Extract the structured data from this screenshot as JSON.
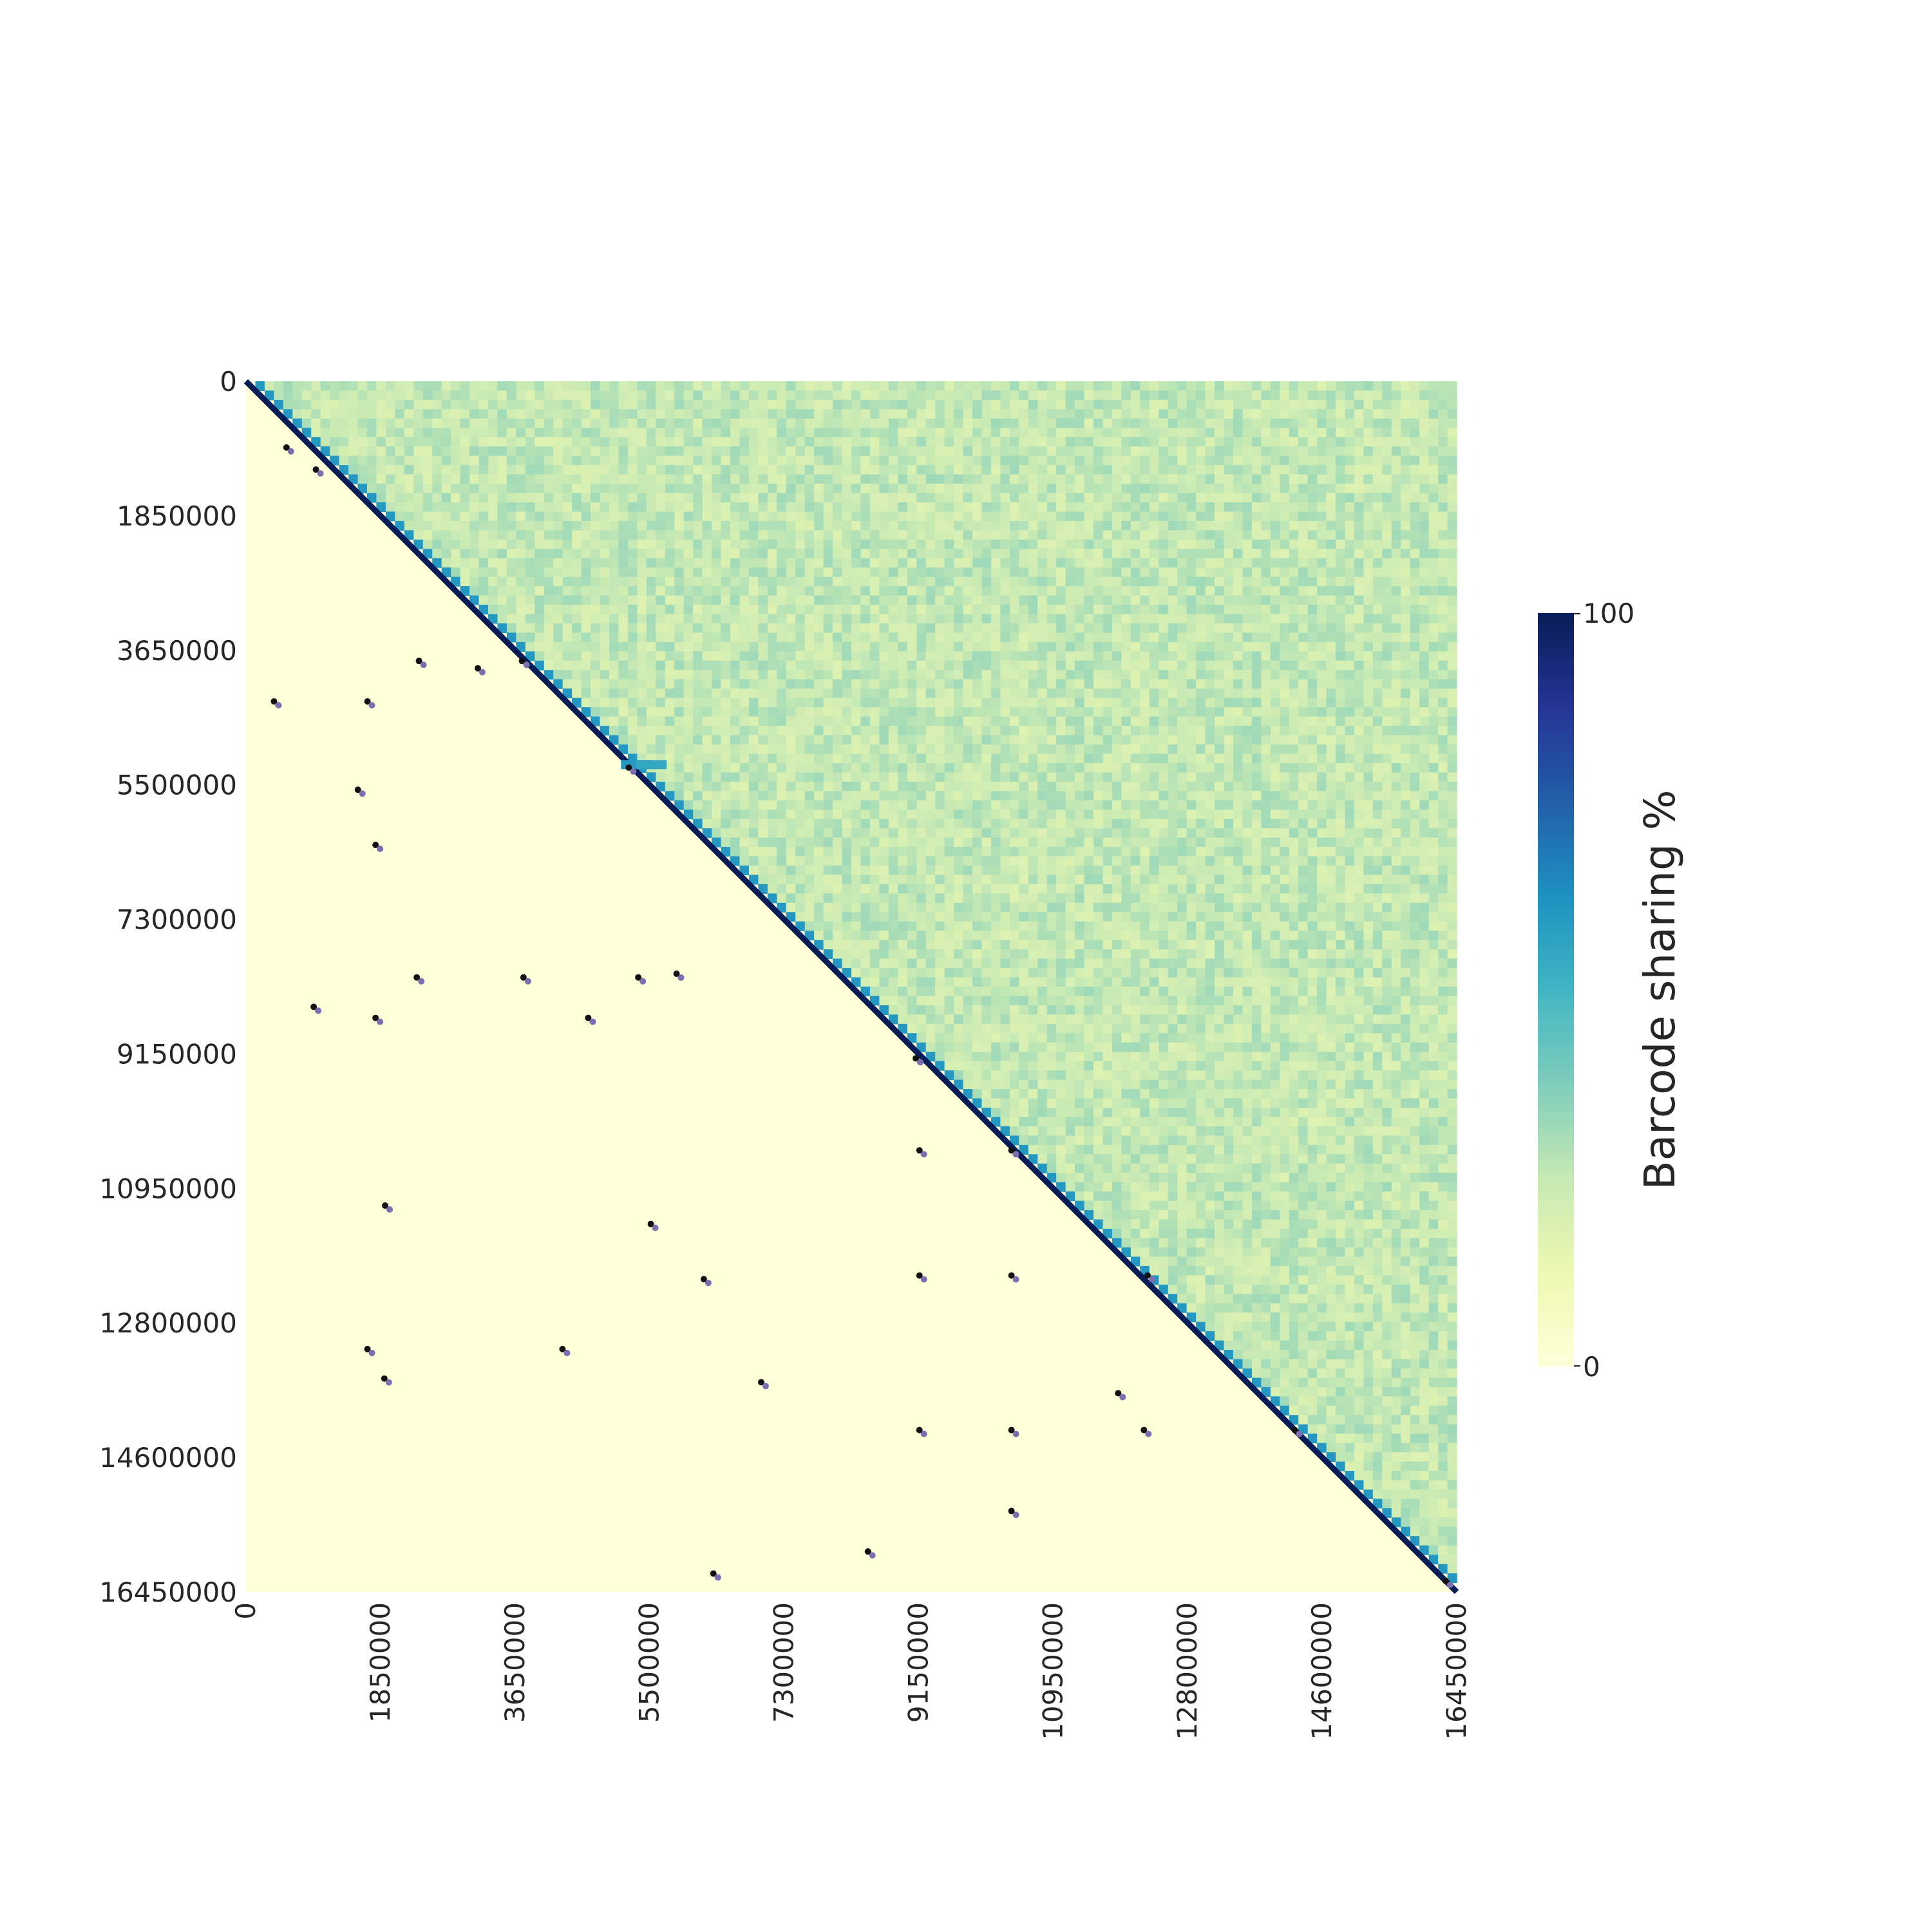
{
  "chart_data": {
    "type": "heatmap",
    "title": "",
    "xlabel": "",
    "ylabel": "",
    "x_ticks": [
      "0",
      "1850000",
      "3650000",
      "5500000",
      "7300000",
      "9150000",
      "10950000",
      "12800000",
      "14600000",
      "16450000"
    ],
    "y_ticks": [
      "0",
      "1850000",
      "3650000",
      "5500000",
      "7300000",
      "9150000",
      "10950000",
      "12800000",
      "14600000",
      "16450000"
    ],
    "xlim": [
      0,
      16450000
    ],
    "ylim": [
      0,
      16450000
    ],
    "y_inverted": true,
    "upper_triangle": {
      "description_value": "barcode sharing percent",
      "typical_range": [
        18,
        32
      ],
      "diagonal_value": 100,
      "near_diagonal_value": 60
    },
    "lower_triangle_value": 0,
    "local_hotspots": [
      {
        "x": 5200000,
        "y": 5200000,
        "value": 60
      },
      {
        "x": 5400000,
        "y": 5200000,
        "value": 55
      }
    ],
    "markers": [
      {
        "x": 550000,
        "y": 900000
      },
      {
        "x": 950000,
        "y": 1200000
      },
      {
        "x": 2350000,
        "y": 3800000
      },
      {
        "x": 3150000,
        "y": 3900000
      },
      {
        "x": 3750000,
        "y": 3800000
      },
      {
        "x": 380000,
        "y": 4350000
      },
      {
        "x": 1650000,
        "y": 4350000
      },
      {
        "x": 1520000,
        "y": 5550000
      },
      {
        "x": 5200000,
        "y": 5250000
      },
      {
        "x": 1760000,
        "y": 6300000
      },
      {
        "x": 2320000,
        "y": 8100000
      },
      {
        "x": 3770000,
        "y": 8100000
      },
      {
        "x": 5330000,
        "y": 8100000
      },
      {
        "x": 5850000,
        "y": 8050000
      },
      {
        "x": 920000,
        "y": 8500000
      },
      {
        "x": 1760000,
        "y": 8650000
      },
      {
        "x": 4650000,
        "y": 8650000
      },
      {
        "x": 9100000,
        "y": 9200000
      },
      {
        "x": 9150000,
        "y": 10450000
      },
      {
        "x": 10400000,
        "y": 10450000
      },
      {
        "x": 1890000,
        "y": 11200000
      },
      {
        "x": 5500000,
        "y": 11450000
      },
      {
        "x": 6220000,
        "y": 12200000
      },
      {
        "x": 9150000,
        "y": 12150000
      },
      {
        "x": 10400000,
        "y": 12150000
      },
      {
        "x": 12250000,
        "y": 12150000
      },
      {
        "x": 1650000,
        "y": 13150000
      },
      {
        "x": 4300000,
        "y": 13150000
      },
      {
        "x": 1880000,
        "y": 13550000
      },
      {
        "x": 7000000,
        "y": 13600000
      },
      {
        "x": 11850000,
        "y": 13750000
      },
      {
        "x": 9150000,
        "y": 14250000
      },
      {
        "x": 10400000,
        "y": 14250000
      },
      {
        "x": 12200000,
        "y": 14250000
      },
      {
        "x": 14250000,
        "y": 14250000
      },
      {
        "x": 10400000,
        "y": 15350000
      },
      {
        "x": 8450000,
        "y": 15900000
      },
      {
        "x": 6350000,
        "y": 16200000
      },
      {
        "x": 16300000,
        "y": 16300000
      }
    ],
    "colorbar": {
      "label": "Barcode sharing %",
      "min_label": "0",
      "max_label": "100",
      "colormap": "YlGnBu",
      "range": [
        0,
        100
      ]
    }
  },
  "colors": {
    "stops": [
      "#ffffd9",
      "#edf8b1",
      "#c7e9b4",
      "#7fcdbb",
      "#41b6c4",
      "#1d91c0",
      "#225ea8",
      "#253494",
      "#081d58"
    ],
    "marker_dark": "#111111",
    "marker_light": "#7b6fb0"
  }
}
